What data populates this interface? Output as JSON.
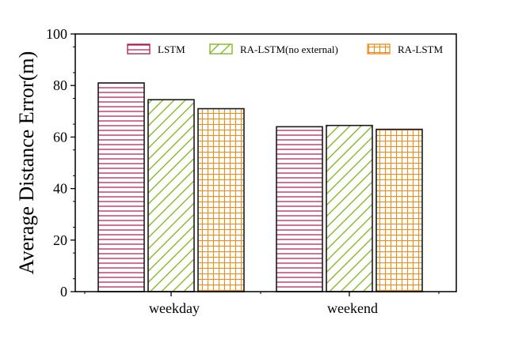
{
  "chart_data": {
    "type": "bar",
    "categories": [
      "weekday",
      "weekend"
    ],
    "series": [
      {
        "name": "LSTM",
        "values": [
          81,
          64
        ],
        "color": "#b0174a",
        "pattern": "horizontal-lines"
      },
      {
        "name": "RA-LSTM(no external)",
        "values": [
          74.5,
          64.5
        ],
        "color": "#7ab317",
        "pattern": "diagonal-hatch"
      },
      {
        "name": "RA-LSTM",
        "values": [
          71,
          63
        ],
        "color": "#f28a1c",
        "pattern": "grid"
      }
    ],
    "ylabel": "Average Distance Error(m)",
    "xlabel": "",
    "ylim": [
      0,
      100
    ],
    "yticks": [
      "0",
      "20",
      "40",
      "60",
      "80",
      "100"
    ],
    "legend": {
      "placement": "top",
      "columns": 3
    },
    "grid": false
  }
}
